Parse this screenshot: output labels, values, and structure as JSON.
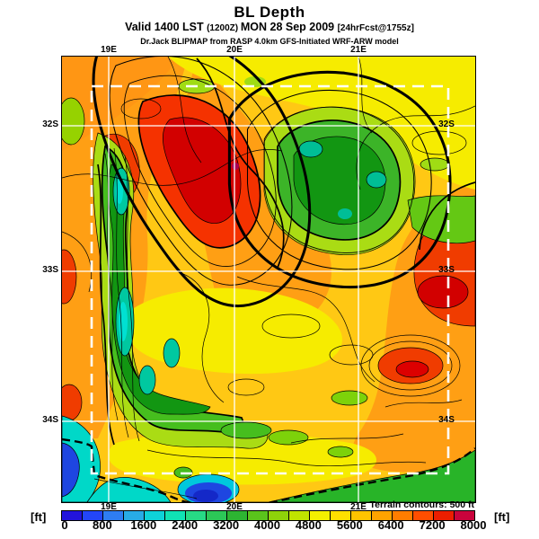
{
  "header": {
    "title": "BL Depth",
    "valid_prefix": "Valid 1400 LST ",
    "valid_zulu": "(1200Z) ",
    "valid_date": "MON 28 Sep 2009 ",
    "valid_fcst": "[24hrFcst@1755z]",
    "model_line": "Dr.Jack BLIPMAP from RASP 4.0km GFS-Initiated WRF-ARW model"
  },
  "map": {
    "top_ticks": [
      "19E",
      "20E",
      "21E"
    ],
    "bottom_ticks": [
      "19E",
      "20E",
      "21E"
    ],
    "left_ticks": [
      "32S",
      "33S",
      "34S"
    ],
    "right_ticks": [
      "32S",
      "33S",
      "34S"
    ],
    "annotation": "Terrain contours: 500 ft"
  },
  "colorbar": {
    "unit_left": "[ft]",
    "unit_right": "[ft]",
    "tick_labels": [
      "0",
      "800",
      "1600",
      "2400",
      "3200",
      "4000",
      "4800",
      "5600",
      "6400",
      "7200",
      "8000"
    ],
    "segment_colors": [
      "#2214dc",
      "#2346f8",
      "#2e7df2",
      "#28abe6",
      "#0ed2d8",
      "#10e2b4",
      "#27da85",
      "#2cc757",
      "#2db432",
      "#5ac41c",
      "#8ed20a",
      "#c0e400",
      "#f4f000",
      "#ffe000",
      "#ffc400",
      "#ffa300",
      "#ff7d00",
      "#ff4e00",
      "#ec1e00",
      "#c9033c"
    ]
  },
  "chart_data": {
    "type": "heatmap",
    "title": "BL Depth",
    "units": "ft",
    "scale_min": 0,
    "scale_max": 8000,
    "contour_interval": 400,
    "label_interval": 800,
    "x_ticks": [
      "19E",
      "20E",
      "21E"
    ],
    "y_ticks": [
      "32S",
      "33S",
      "34S"
    ],
    "legend_note": "Terrain contours: 500 ft",
    "description": "Filled contour forecast map of boundary-layer depth over the Western Cape (18-22E, 31.5-34.5S); deep red maxima near 8000 ft inland, blue/cyan minima under 1600 ft along the southwest coast, green mountain ranges 2400-4000 ft."
  }
}
